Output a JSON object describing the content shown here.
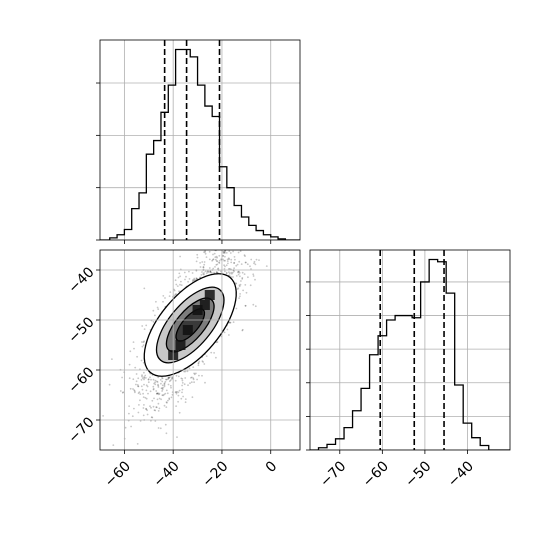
{
  "chart_data": [
    {
      "type": "histogram",
      "panel": "top-left",
      "x_range": [
        -70,
        12
      ],
      "bin_edges": [
        -66,
        -63,
        -60,
        -57,
        -54,
        -51,
        -48,
        -45,
        -42,
        -39,
        -36,
        -33,
        -30,
        -27,
        -24,
        -21,
        -18,
        -15,
        -12,
        -9,
        -6,
        -3,
        0,
        3,
        6
      ],
      "counts": [
        2,
        5,
        10,
        30,
        45,
        82,
        95,
        122,
        148,
        182,
        182,
        175,
        148,
        128,
        118,
        70,
        50,
        33,
        22,
        14,
        9,
        5,
        3,
        1
      ],
      "quantile_lines": [
        -43.5,
        -34.5,
        -21
      ],
      "x_ticks": [
        -60,
        -40,
        -20,
        0
      ],
      "grid": true
    },
    {
      "type": "scatter-density",
      "panel": "bottom-left",
      "x_range": [
        -70,
        12
      ],
      "y_range": [
        -76,
        -36
      ],
      "center": [
        -33,
        -51
      ],
      "x_ticks": [
        -60,
        -40,
        -20,
        0
      ],
      "x_tick_labels": [
        "−60",
        "−40",
        "−20",
        "0"
      ],
      "y_ticks": [
        -40,
        -50,
        -60,
        -70
      ],
      "y_tick_labels": [
        "−40",
        "−50",
        "−60",
        "−70"
      ],
      "grid": true
    },
    {
      "type": "histogram",
      "panel": "bottom-right",
      "x_range": [
        -77,
        -30
      ],
      "bin_edges": [
        -75,
        -73,
        -71,
        -69,
        -67,
        -65,
        -63,
        -61,
        -59,
        -57,
        -55,
        -53,
        -51,
        -49,
        -47,
        -45,
        -43,
        -41,
        -39,
        -37,
        -35
      ],
      "counts": [
        2,
        5,
        10,
        20,
        35,
        55,
        85,
        102,
        116,
        120,
        120,
        118,
        150,
        170,
        168,
        140,
        58,
        24,
        11,
        4
      ],
      "quantile_lines": [
        -60.5,
        -52.5,
        -45.5
      ],
      "x_ticks": [
        -70,
        -60,
        -50,
        -40
      ],
      "x_tick_labels": [
        "−70",
        "−60",
        "−50",
        "−40"
      ],
      "grid": true
    }
  ]
}
